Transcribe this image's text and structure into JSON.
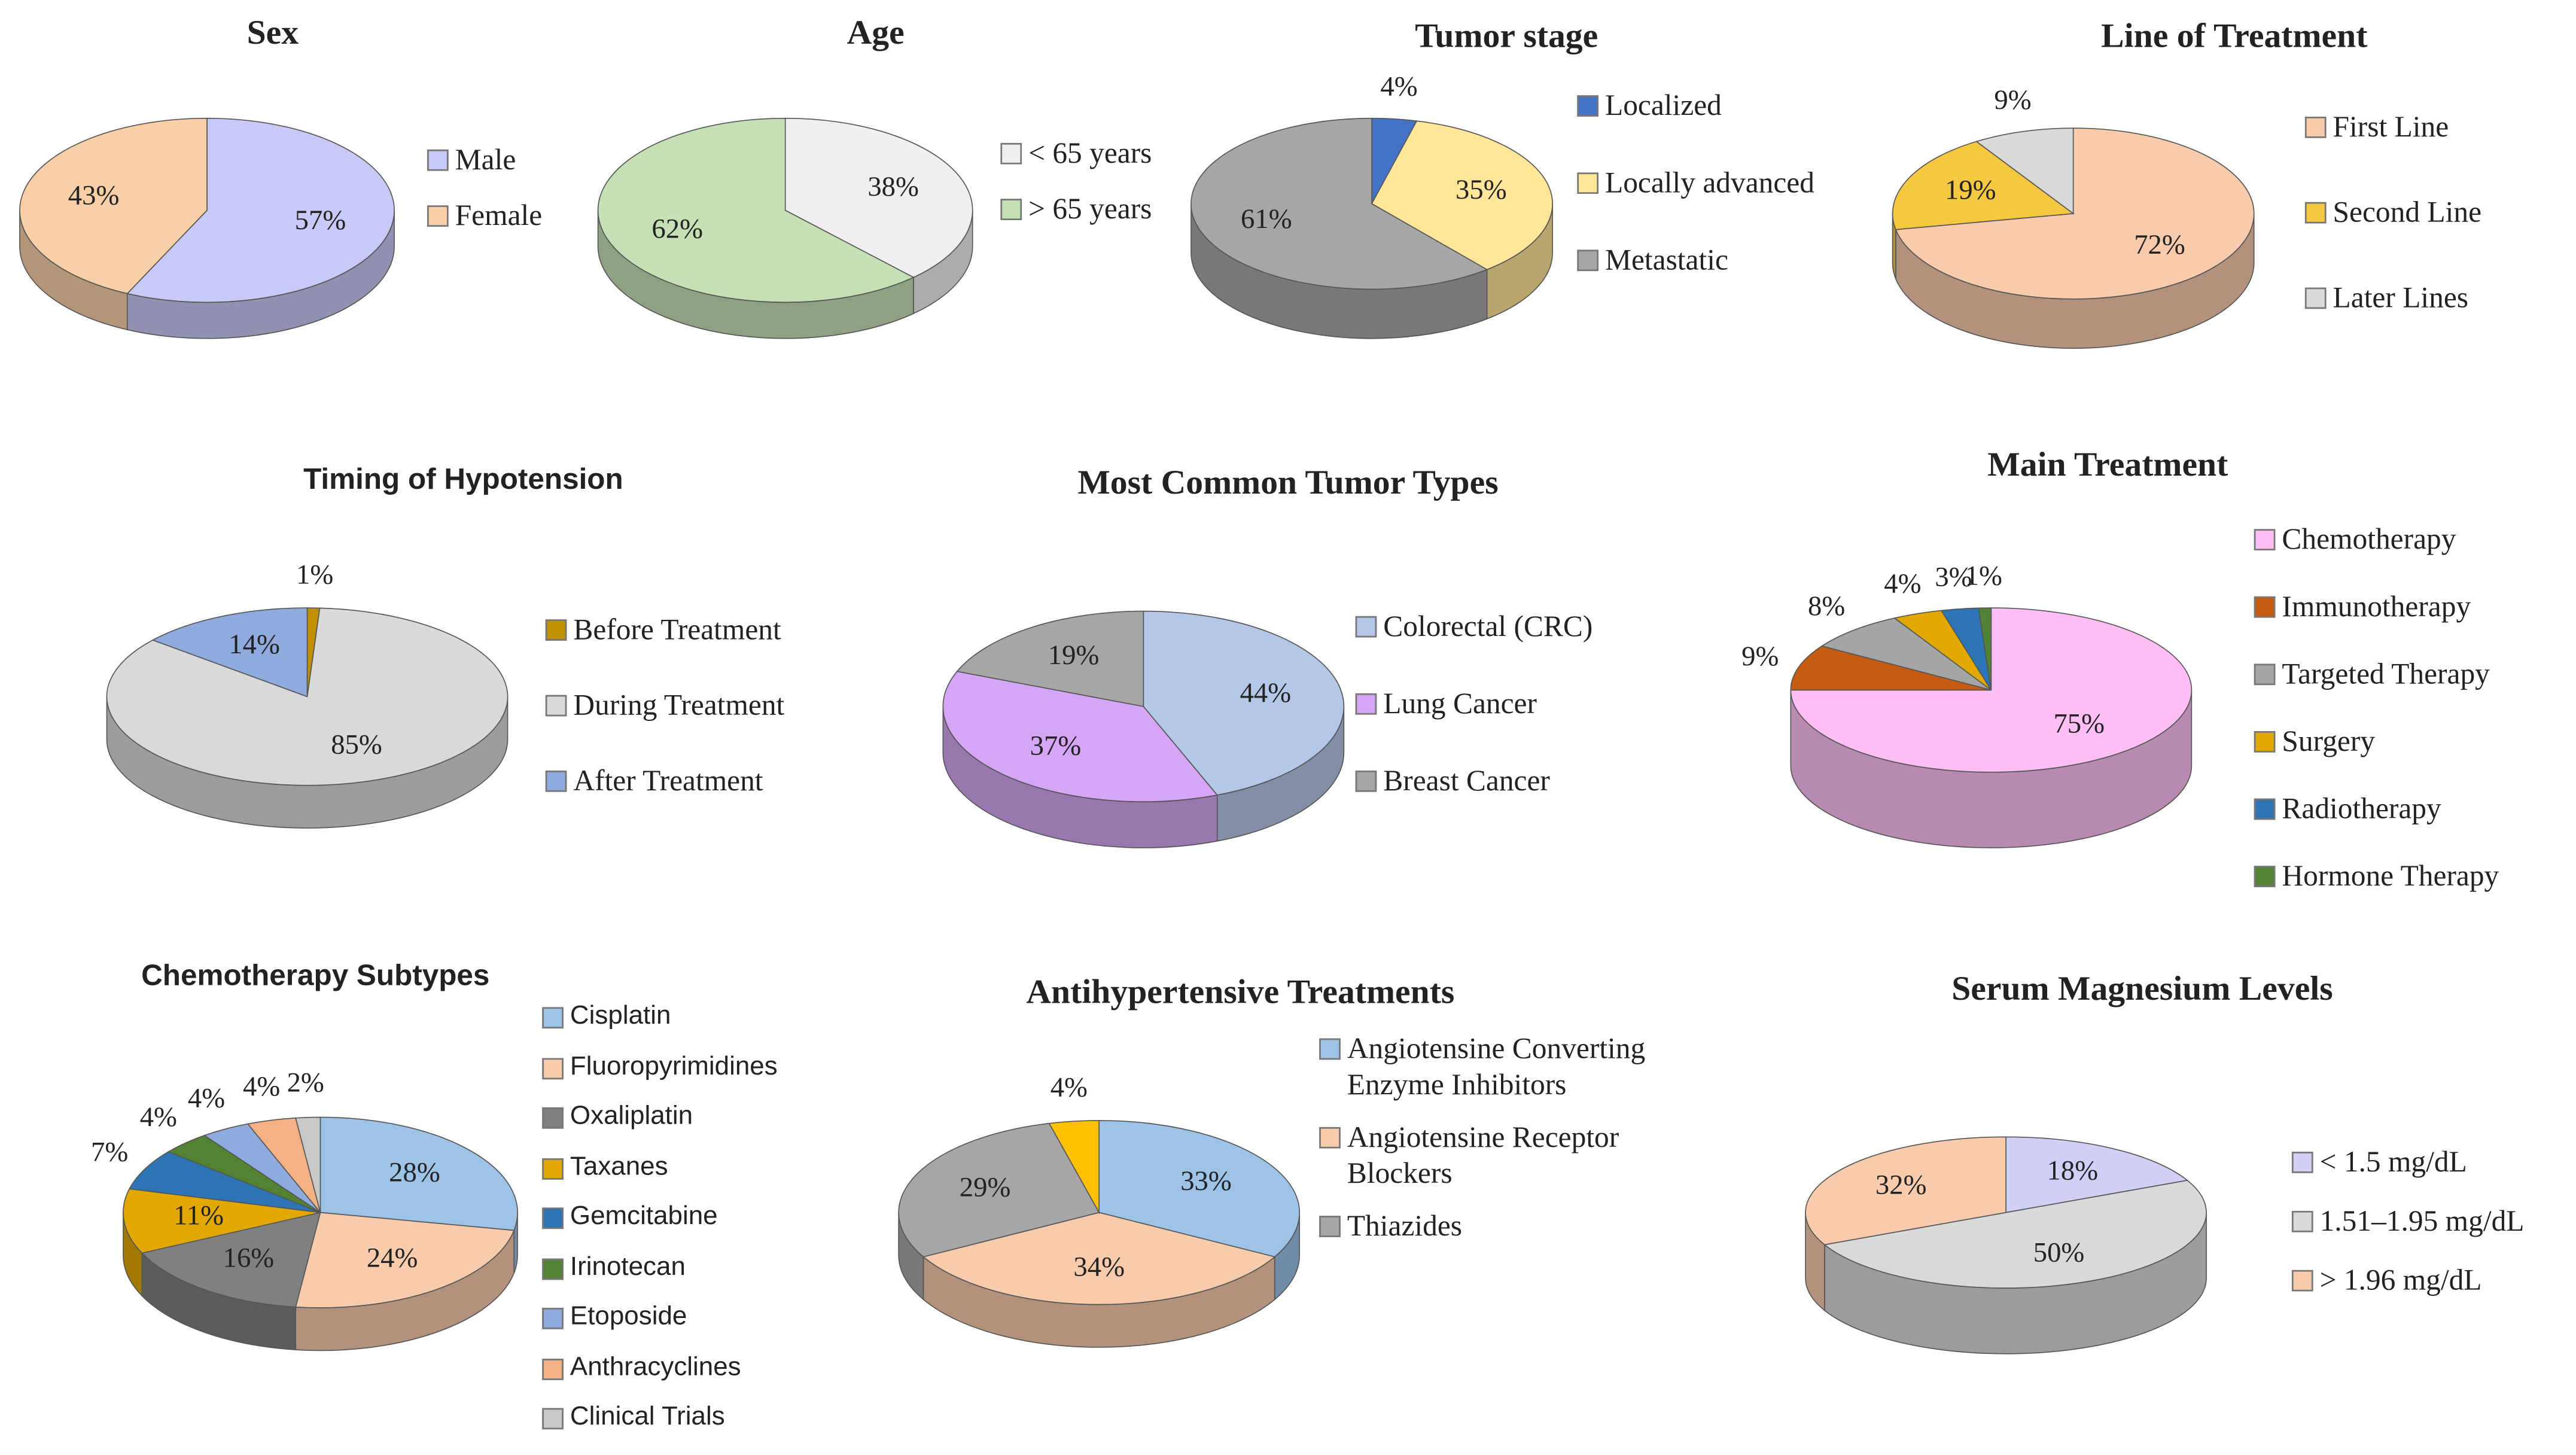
{
  "chart_data": [
    {
      "type": "pie",
      "title": "Sex",
      "categories": [
        "Male",
        "Female"
      ],
      "values": [
        57,
        43
      ],
      "value_labels": [
        "57%",
        "43%"
      ],
      "colors": [
        "#c9c9f7",
        "#f8cfa6"
      ]
    },
    {
      "type": "pie",
      "title": "Age",
      "categories": [
        "< 65 years",
        "> 65 years"
      ],
      "values": [
        38,
        62
      ],
      "value_labels": [
        "38%",
        "62%"
      ],
      "colors": [
        "#efefef",
        "#c5e0b4"
      ]
    },
    {
      "type": "pie",
      "title": "Tumor stage",
      "categories": [
        "Localized",
        "Locally advanced",
        "Metastatic"
      ],
      "values": [
        4,
        35,
        61
      ],
      "value_labels": [
        "4%",
        "35%",
        "61%"
      ],
      "colors": [
        "#4472c4",
        "#ffe699",
        "#a6a6a6"
      ]
    },
    {
      "type": "pie",
      "title": "Line of Treatment",
      "categories": [
        "First Line",
        "Second Line",
        "Later Lines"
      ],
      "values": [
        72,
        19,
        9
      ],
      "value_labels": [
        "72%",
        "19%",
        "9%"
      ],
      "colors": [
        "#f8cbad",
        "#f5c842",
        "#d9d9d9"
      ]
    },
    {
      "type": "pie",
      "title": "Timing of Hypotension",
      "categories": [
        "Before Treatment",
        "During Treatment",
        "After Treatment"
      ],
      "values": [
        1,
        85,
        14
      ],
      "value_labels": [
        "1%",
        "85%",
        "14%"
      ],
      "colors": [
        "#bf9000",
        "#d9d9d9",
        "#8faadc"
      ]
    },
    {
      "type": "pie",
      "title": "Most Common Tumor Types",
      "categories": [
        "Colorectal (CRC)",
        "Lung Cancer",
        "Breast Cancer"
      ],
      "values": [
        44,
        37,
        19
      ],
      "value_labels": [
        "44%",
        "37%",
        "19%"
      ],
      "colors": [
        "#b4c7e7",
        "#d5a6f5",
        "#a6a6a6"
      ]
    },
    {
      "type": "pie",
      "title": "Main Treatment",
      "categories": [
        "Chemotherapy",
        "Immunotherapy",
        "Targeted Therapy",
        "Surgery",
        "Radiotherapy",
        "Hormone Therapy"
      ],
      "values": [
        75,
        9,
        8,
        4,
        3,
        1
      ],
      "value_labels": [
        "75%",
        "9%",
        "8%",
        "4%",
        "3%",
        "1%"
      ],
      "colors": [
        "#ffbff5",
        "#c55a11",
        "#a5a5a5",
        "#e0a800",
        "#2e75b6",
        "#548235"
      ]
    },
    {
      "type": "pie",
      "title": "Chemotherapy Subtypes",
      "categories": [
        "Cisplatin",
        "Fluoropyrimidines",
        "Oxaliplatin",
        "Taxanes",
        "Gemcitabine",
        "Irinotecan",
        "Etoposide",
        "Anthracyclines",
        "Clinical Trials"
      ],
      "values": [
        28,
        24,
        16,
        11,
        7,
        4,
        4,
        4,
        2
      ],
      "value_labels": [
        "28%",
        "24%",
        "16%",
        "11%",
        "7%",
        "4%",
        "4%",
        "4%",
        "2%"
      ],
      "colors": [
        "#9dc3e6",
        "#f8cbad",
        "#808080",
        "#e0a800",
        "#2e75b6",
        "#548235",
        "#8faadc",
        "#f4b183",
        "#c9c9c9"
      ]
    },
    {
      "type": "pie",
      "title": "Antihypertensive Treatments",
      "categories": [
        "Angiotensine Converting Enzyme Inhibitors",
        "Angiotensine Receptor Blockers",
        "Thiazides",
        null
      ],
      "values": [
        33,
        34,
        29,
        4
      ],
      "value_labels": [
        "33%",
        "34%",
        "29%",
        "4%"
      ],
      "colors": [
        "#9dc3e6",
        "#f8cbad",
        "#a6a6a6",
        "#ffc000"
      ]
    },
    {
      "type": "pie",
      "title": "Serum Magnesium Levels",
      "categories": [
        "< 1.5 mg/dL",
        "1.51–1.95 mg/dL",
        "> 1.96 mg/dL"
      ],
      "values": [
        18,
        50,
        32
      ],
      "value_labels": [
        "18%",
        "50%",
        "32%"
      ],
      "colors": [
        "#d0d0f7",
        "#d9d9d9",
        "#f8cbad"
      ]
    }
  ]
}
